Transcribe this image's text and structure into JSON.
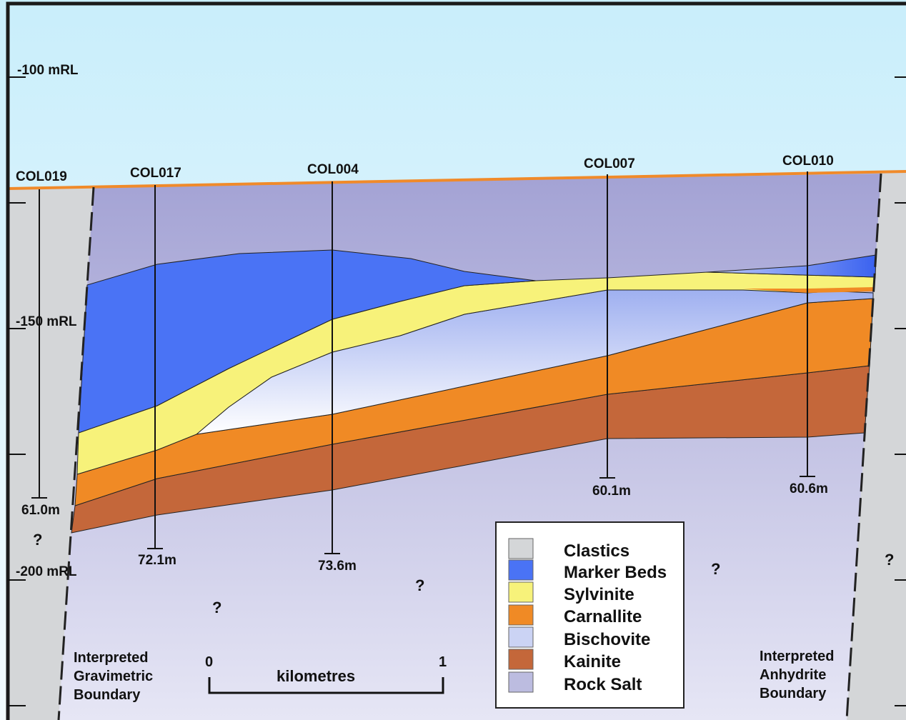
{
  "colors": {
    "sky_top": "#c9eefb",
    "sky_bottom": "#f3fbfe",
    "clastics": "#d4d6d8",
    "marker_beds": "#4a73f5",
    "sylvinite": "#f7f27a",
    "carnallite": "#f08a25",
    "bischovite": "#cbd3f4",
    "kainite": "#c4673a",
    "rock_salt": "#bcbce0",
    "surface_line": "#f08a2a"
  },
  "elevation_labels": [
    "-100 mRL",
    "-150 mRL",
    "-200 mRL"
  ],
  "drillholes": [
    {
      "id": "COL019",
      "depth": "61.0m"
    },
    {
      "id": "COL017",
      "depth": "72.1m"
    },
    {
      "id": "COL004",
      "depth": "73.6m"
    },
    {
      "id": "COL007",
      "depth": "60.1m"
    },
    {
      "id": "COL010",
      "depth": "60.6m"
    }
  ],
  "unknown_mark": "?",
  "boundaries": {
    "left": [
      "Interpreted",
      "Gravimetric",
      "Boundary"
    ],
    "right": [
      "Interpreted",
      "Anhydrite",
      "Boundary"
    ]
  },
  "scale_bar": {
    "start": "0",
    "end": "1",
    "unit": "kilometres"
  },
  "legend": {
    "items": [
      {
        "label": "Clastics",
        "color": "#d4d6d8"
      },
      {
        "label": "Marker Beds",
        "color": "#4a73f5"
      },
      {
        "label": "Sylvinite",
        "color": "#f7f27a"
      },
      {
        "label": "Carnallite",
        "color": "#f08a25"
      },
      {
        "label": "Bischovite",
        "color": "#cbd3f4"
      },
      {
        "label": "Kainite",
        "color": "#c4673a"
      },
      {
        "label": "Rock Salt",
        "color": "#bcbce0"
      }
    ]
  }
}
